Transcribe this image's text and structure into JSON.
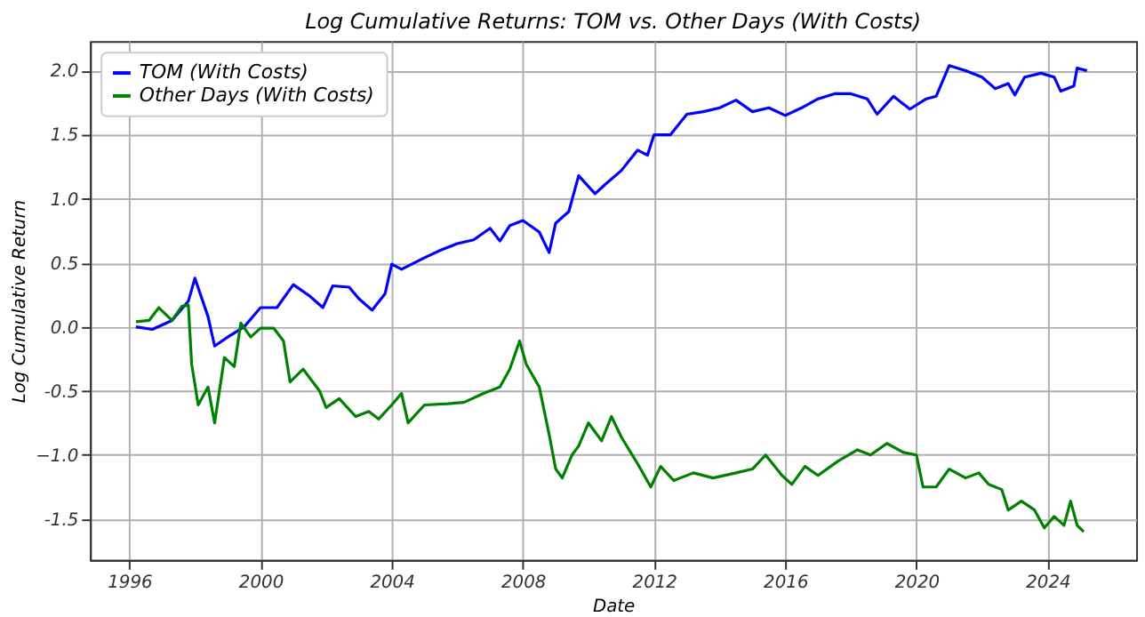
{
  "chart_data": {
    "type": "line",
    "title": "Log Cumulative Returns: TOM vs. Other Days (With Costs)",
    "xlabel": "Date",
    "ylabel": "Log Cumulative Return",
    "xlim": [
      1994.8,
      2026.7
    ],
    "xticks": [
      1996,
      2000,
      2004,
      2008,
      2012,
      2016,
      2020,
      2024
    ],
    "ylim": [
      -1.82,
      2.23
    ],
    "yticks": [
      -1.5,
      {
        "value": -1,
        "label": "−1.0"
      },
      -0.5,
      {
        "value": 0,
        "label": "0.0"
      },
      0.5,
      {
        "value": 1,
        "label": "1.0"
      },
      1.5,
      {
        "value": 2,
        "label": "2.0"
      }
    ],
    "grid": true,
    "legend": "top left",
    "line_style": "solid",
    "series": [
      {
        "name": "TOM (With Costs)",
        "color": "#0000ff",
        "x": [
          1996.2,
          1996.7,
          1997.3,
          1997.8,
          1998.0,
          1998.4,
          1998.6,
          1999.0,
          1999.5,
          2000.0,
          2000.5,
          2001.0,
          2001.5,
          2001.9,
          2002.2,
          2002.7,
          2003.0,
          2003.4,
          2003.8,
          2004.0,
          2004.3,
          2005.0,
          2005.5,
          2006.0,
          2006.5,
          2007.0,
          2007.3,
          2007.6,
          2008.0,
          2008.5,
          2008.8,
          2009.0,
          2009.4,
          2009.7,
          2010.2,
          2010.5,
          2011.0,
          2011.5,
          2011.8,
          2012.0,
          2012.5,
          2013.0,
          2013.5,
          2014.0,
          2014.5,
          2015.0,
          2015.5,
          2016.0,
          2016.5,
          2017.0,
          2017.5,
          2018.0,
          2018.5,
          2018.8,
          2019.3,
          2019.8,
          2020.3,
          2020.6,
          2020.9,
          2021.0,
          2021.5,
          2022.0,
          2022.4,
          2022.8,
          2023.0,
          2023.3,
          2023.8,
          2024.2,
          2024.4,
          2024.8,
          2024.9,
          2025.2
        ],
        "values": [
          0.0,
          -0.02,
          0.05,
          0.2,
          0.38,
          0.08,
          -0.15,
          -0.08,
          0.0,
          0.15,
          0.15,
          0.33,
          0.24,
          0.15,
          0.32,
          0.31,
          0.22,
          0.13,
          0.26,
          0.49,
          0.45,
          0.54,
          0.6,
          0.65,
          0.68,
          0.77,
          0.67,
          0.79,
          0.83,
          0.74,
          0.58,
          0.81,
          0.9,
          1.18,
          1.04,
          1.11,
          1.22,
          1.38,
          1.34,
          1.5,
          1.5,
          1.66,
          1.68,
          1.71,
          1.77,
          1.68,
          1.71,
          1.65,
          1.71,
          1.78,
          1.82,
          1.82,
          1.78,
          1.66,
          1.8,
          1.7,
          1.78,
          1.8,
          1.98,
          2.04,
          2.0,
          1.95,
          1.86,
          1.9,
          1.81,
          1.95,
          1.98,
          1.95,
          1.84,
          1.88,
          2.02,
          2.0
        ]
      },
      {
        "name": "Other Days (With Costs)",
        "color": "#008000",
        "x": [
          1996.2,
          1996.6,
          1996.9,
          1997.3,
          1997.6,
          1997.8,
          1997.9,
          1998.1,
          1998.4,
          1998.6,
          1998.9,
          1999.2,
          1999.4,
          1999.7,
          2000.0,
          2000.4,
          2000.7,
          2000.9,
          2001.3,
          2001.8,
          2002.0,
          2002.4,
          2002.9,
          2003.3,
          2003.6,
          2004.0,
          2004.3,
          2004.5,
          2005.0,
          2005.7,
          2006.2,
          2006.8,
          2007.3,
          2007.6,
          2007.9,
          2008.1,
          2008.5,
          2008.8,
          2009.0,
          2009.2,
          2009.5,
          2009.7,
          2010.0,
          2010.4,
          2010.7,
          2011.0,
          2011.5,
          2011.9,
          2012.2,
          2012.6,
          2013.2,
          2013.8,
          2014.5,
          2015.0,
          2015.4,
          2015.9,
          2016.2,
          2016.6,
          2017.0,
          2017.6,
          2018.2,
          2018.6,
          2019.1,
          2019.6,
          2020.0,
          2020.2,
          2020.6,
          2021.0,
          2021.5,
          2021.9,
          2022.2,
          2022.6,
          2022.8,
          2023.2,
          2023.6,
          2023.9,
          2024.2,
          2024.5,
          2024.7,
          2024.9,
          2025.1
        ],
        "values": [
          0.04,
          0.05,
          0.15,
          0.05,
          0.16,
          0.17,
          -0.29,
          -0.61,
          -0.47,
          -0.75,
          -0.24,
          -0.31,
          0.03,
          -0.08,
          -0.01,
          -0.01,
          -0.11,
          -0.43,
          -0.33,
          -0.5,
          -0.63,
          -0.56,
          -0.7,
          -0.66,
          -0.72,
          -0.61,
          -0.52,
          -0.75,
          -0.61,
          -0.6,
          -0.59,
          -0.52,
          -0.47,
          -0.33,
          -0.11,
          -0.29,
          -0.47,
          -0.84,
          -1.11,
          -1.18,
          -1.0,
          -0.93,
          -0.75,
          -0.89,
          -0.7,
          -0.86,
          -1.07,
          -1.25,
          -1.09,
          -1.2,
          -1.14,
          -1.18,
          -1.14,
          -1.11,
          -1.0,
          -1.16,
          -1.23,
          -1.09,
          -1.16,
          -1.05,
          -0.96,
          -1.0,
          -0.91,
          -0.98,
          -1.0,
          -1.25,
          -1.25,
          -1.11,
          -1.18,
          -1.14,
          -1.23,
          -1.27,
          -1.43,
          -1.36,
          -1.43,
          -1.57,
          -1.48,
          -1.55,
          -1.36,
          -1.55,
          -1.6
        ]
      }
    ]
  }
}
